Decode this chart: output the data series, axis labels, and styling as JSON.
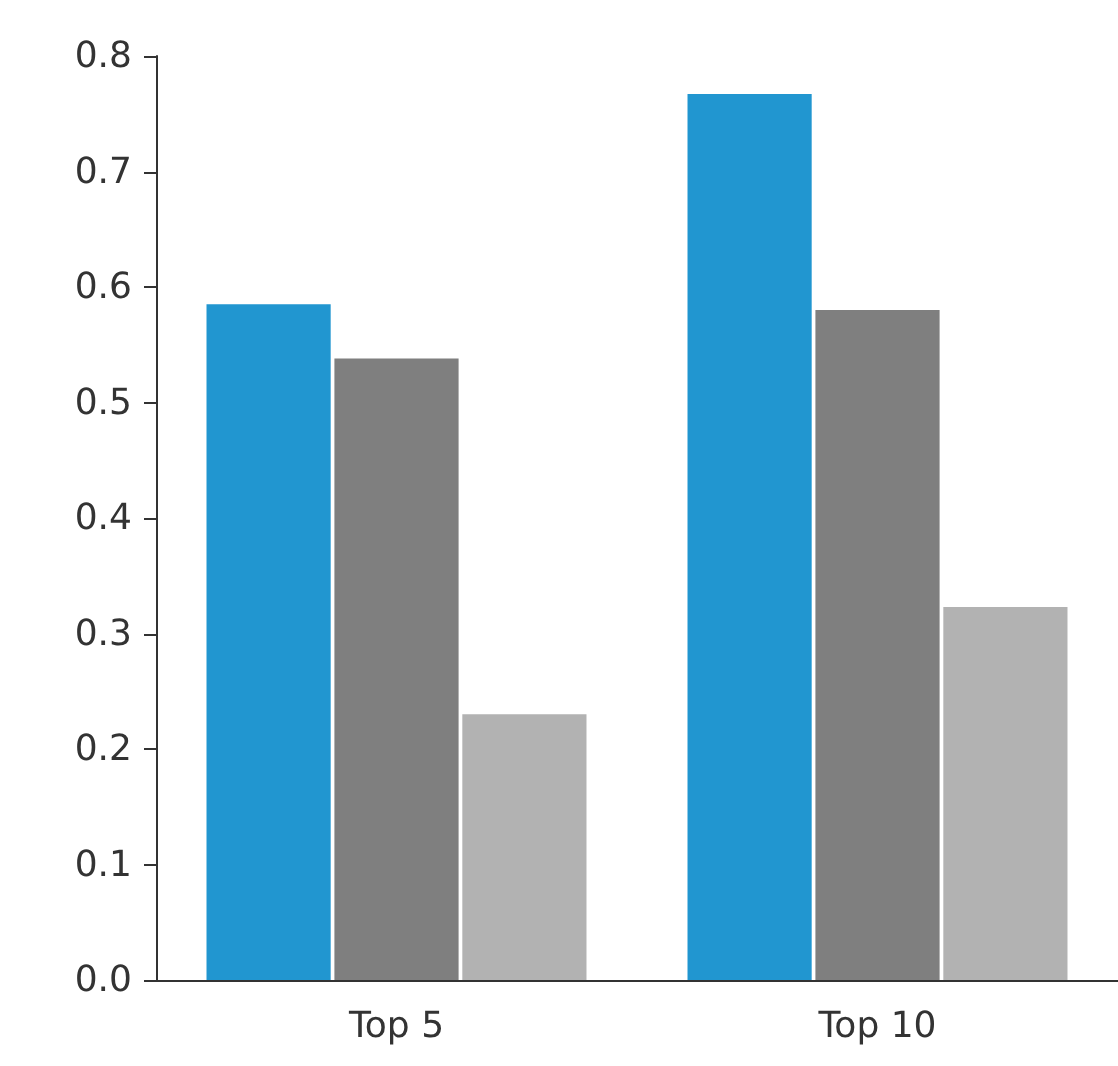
{
  "chart_data": {
    "type": "bar",
    "categories": [
      "Top 5",
      "Top 10"
    ],
    "series": [
      {
        "color": "#2196d0",
        "values": [
          0.585,
          0.767
        ]
      },
      {
        "color": "#7f7f7f",
        "values": [
          0.538,
          0.58
        ]
      },
      {
        "color": "#b2b2b2",
        "values": [
          0.23,
          0.323
        ]
      }
    ],
    "ylim": [
      0,
      0.8
    ],
    "yticks": [
      {
        "value": 0,
        "label": "0.0"
      },
      0.1,
      0.2,
      0.3,
      0.4,
      0.5,
      0.6,
      0.7,
      0.8
    ],
    "grid": false
  }
}
